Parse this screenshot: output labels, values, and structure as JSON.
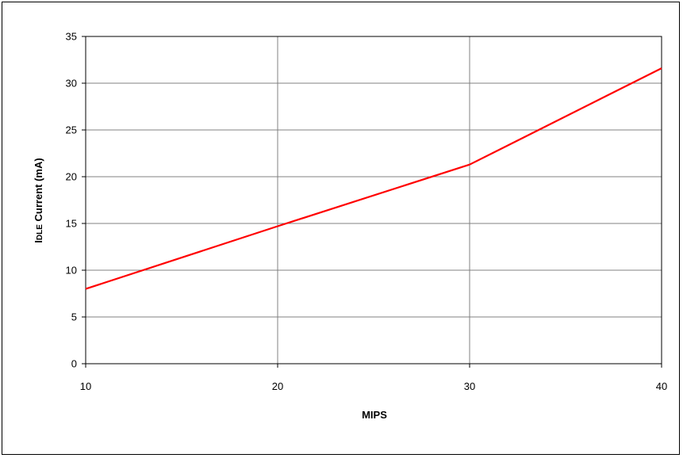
{
  "chart_data": {
    "type": "line",
    "title": "",
    "xlabel": "MIPS",
    "ylabel": {
      "prefix": "I",
      "smallcaps": "DLE",
      "suffix": " Current (mA)"
    },
    "xlim": [
      10,
      40
    ],
    "ylim": [
      0,
      35
    ],
    "x_ticks": [
      10,
      20,
      30,
      40
    ],
    "y_ticks": [
      0,
      5,
      10,
      15,
      20,
      25,
      30,
      35
    ],
    "grid": true,
    "legend": "none",
    "series": [
      {
        "x": [
          10,
          20,
          30,
          40
        ],
        "y": [
          8.0,
          14.7,
          21.3,
          31.6
        ],
        "color": "#ff0000"
      }
    ]
  },
  "colors": {
    "gridline": "#808080",
    "axis": "#000000",
    "series_line": "#ff0000"
  }
}
